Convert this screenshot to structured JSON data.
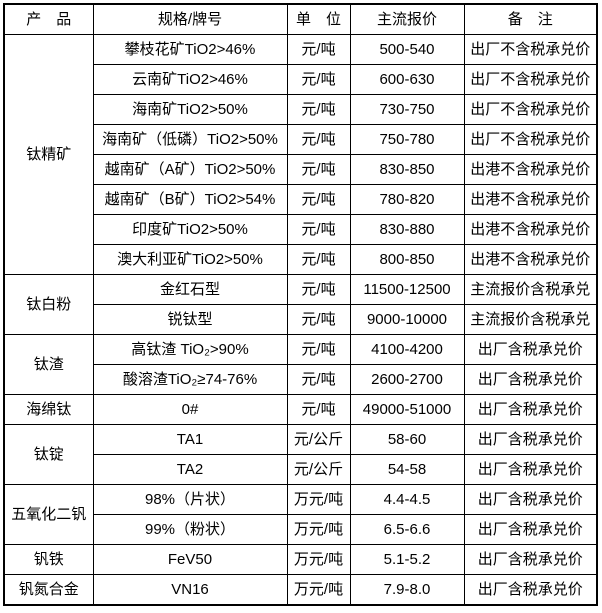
{
  "chart_data": {
    "type": "table",
    "headers": [
      "产　品",
      "规格/牌号",
      "单　位",
      "主流报价",
      "备　注"
    ],
    "style": {
      "border_color": "#000000",
      "text_color": "#000000",
      "background_color": "#ffffff"
    },
    "groups": [
      {
        "product": "钛精矿",
        "rows": [
          {
            "spec": "攀枝花矿TiO2>46%",
            "unit": "元/吨",
            "price": "500-540",
            "note": "出厂不含税承兑价"
          },
          {
            "spec": "云南矿TiO2>46%",
            "unit": "元/吨",
            "price": "600-630",
            "note": "出厂不含税承兑价"
          },
          {
            "spec": "海南矿TiO2>50%",
            "unit": "元/吨",
            "price": "730-750",
            "note": "出厂不含税承兑价"
          },
          {
            "spec": "海南矿（低磷）TiO2>50%",
            "unit": "元/吨",
            "price": "750-780",
            "note": "出厂不含税承兑价"
          },
          {
            "spec": "越南矿（A矿）TiO2>50%",
            "unit": "元/吨",
            "price": "830-850",
            "note": "出港不含税承兑价"
          },
          {
            "spec": "越南矿（B矿）TiO2>54%",
            "unit": "元/吨",
            "price": "780-820",
            "note": "出港不含税承兑价"
          },
          {
            "spec": "印度矿TiO2>50%",
            "unit": "元/吨",
            "price": "830-880",
            "note": "出港不含税承兑价"
          },
          {
            "spec": "澳大利亚矿TiO2>50%",
            "unit": "元/吨",
            "price": "800-850",
            "note": "出港不含税承兑价"
          }
        ]
      },
      {
        "product": "钛白粉",
        "rows": [
          {
            "spec": "金红石型",
            "unit": "元/吨",
            "price": "11500-12500",
            "note": "主流报价含税承兑"
          },
          {
            "spec": "锐钛型",
            "unit": "元/吨",
            "price": "9000-10000",
            "note": "主流报价含税承兑"
          }
        ]
      },
      {
        "product": "钛渣",
        "rows": [
          {
            "spec": "高钛渣 TiO₂>90%",
            "unit": "元/吨",
            "price": "4100-4200",
            "note": "出厂含税承兑价"
          },
          {
            "spec": "酸溶渣TiO₂≥74-76%",
            "unit": "元/吨",
            "price": "2600-2700",
            "note": "出厂含税承兑价"
          }
        ]
      },
      {
        "product": "海绵钛",
        "rows": [
          {
            "spec": "0#",
            "unit": "元/吨",
            "price": "49000-51000",
            "note": "出厂含税承兑价"
          }
        ]
      },
      {
        "product": "钛锭",
        "rows": [
          {
            "spec": "TA1",
            "unit": "元/公斤",
            "price": "58-60",
            "note": "出厂含税承兑价"
          },
          {
            "spec": "TA2",
            "unit": "元/公斤",
            "price": "54-58",
            "note": "出厂含税承兑价"
          }
        ]
      },
      {
        "product": "五氧化二钒",
        "rows": [
          {
            "spec": "98%（片状）",
            "unit": "万元/吨",
            "price": "4.4-4.5",
            "note": "出厂含税承兑价"
          },
          {
            "spec": "99%（粉状）",
            "unit": "万元/吨",
            "price": "6.5-6.6",
            "note": "出厂含税承兑价"
          }
        ]
      },
      {
        "product": "钒铁",
        "rows": [
          {
            "spec": "FeV50",
            "unit": "万元/吨",
            "price": "5.1-5.2",
            "note": "出厂含税承兑价"
          }
        ]
      },
      {
        "product": "钒氮合金",
        "rows": [
          {
            "spec": "VN16",
            "unit": "万元/吨",
            "price": "7.9-8.0",
            "note": "出厂含税承兑价"
          }
        ]
      }
    ]
  }
}
